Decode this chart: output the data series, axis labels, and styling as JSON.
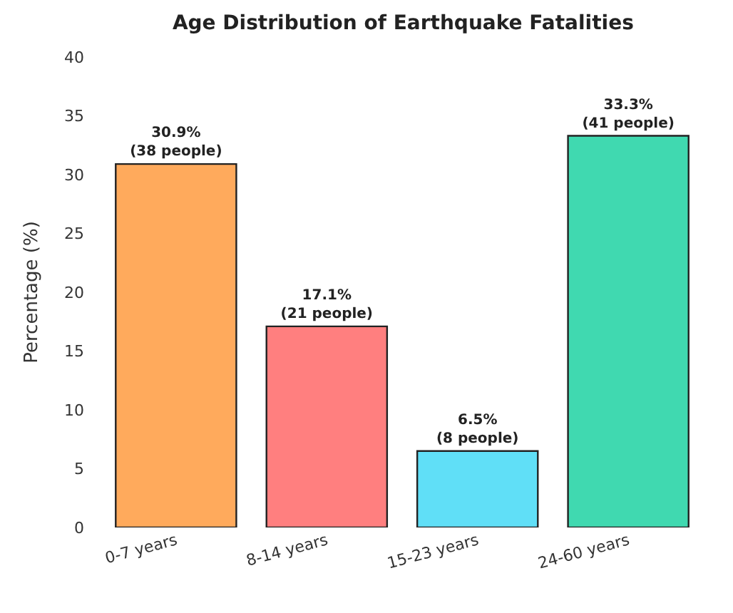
{
  "chart_data": {
    "type": "bar",
    "title": "Age Distribution of Earthquake Fatalities",
    "ylabel": "Percentage (%)",
    "categories": [
      "0-7 years",
      "8-14 years",
      "15-23 years",
      "24-60 years"
    ],
    "values": [
      30.9,
      17.1,
      6.5,
      33.3
    ],
    "colors": [
      "#ffaa5c",
      "#ff7f7f",
      "#60dff7",
      "#40d9b0"
    ],
    "value_labels": [
      "30.9%\n(38 people)",
      "17.1%\n(21 people)",
      "6.5%\n(8 people)",
      "33.3%\n(41 people)"
    ],
    "ylim": [
      0,
      40
    ],
    "yticks": [
      0,
      5,
      10,
      15,
      20,
      25,
      30,
      35,
      40
    ]
  }
}
